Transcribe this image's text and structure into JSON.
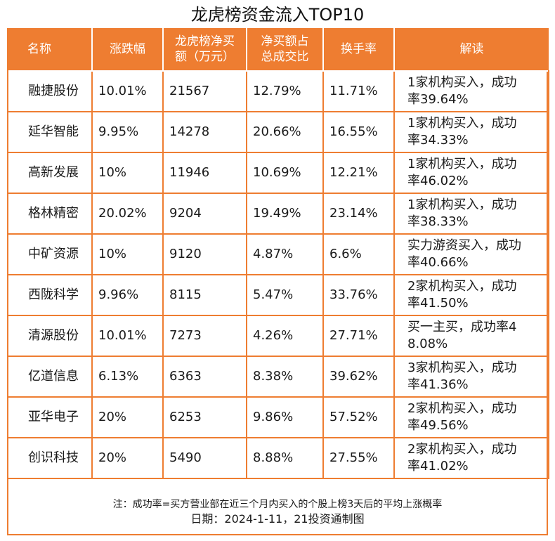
{
  "title": "龙虎榜资金流入TOP10",
  "chart_data": {
    "type": "table",
    "title": "龙虎榜资金流入TOP10",
    "columns": [
      "名称",
      "涨跌幅",
      "龙虎榜净买额（万元）",
      "净买额占总成交比",
      "换手率",
      "解读"
    ],
    "header_lines": [
      [
        "名称"
      ],
      [
        "涨跌幅"
      ],
      [
        "龙虎榜净买",
        "额（万元）"
      ],
      [
        "净买额占",
        "总成交比"
      ],
      [
        "换手率"
      ],
      [
        "解读"
      ]
    ],
    "rows": [
      [
        "融捷股份",
        "10.01%",
        "21567",
        "12.79%",
        "11.71%",
        [
          "1家机构买入，成功",
          "率39.64%"
        ]
      ],
      [
        "延华智能",
        "9.95%",
        "14278",
        "20.66%",
        "16.55%",
        [
          "1家机构买入，成功",
          "率34.33%"
        ]
      ],
      [
        "高新发展",
        "10%",
        "11946",
        "10.69%",
        "12.21%",
        [
          "1家机构买入，成功",
          "率46.02%"
        ]
      ],
      [
        "格林精密",
        "20.02%",
        "9204",
        "19.49%",
        "23.14%",
        [
          "1家机构买入，成功",
          "率38.33%"
        ]
      ],
      [
        "中矿资源",
        "10%",
        "9120",
        "4.87%",
        "6.6%",
        [
          "实力游资买入，成功",
          "率40.66%"
        ]
      ],
      [
        "西陇科学",
        "9.96%",
        "8115",
        "5.47%",
        "33.76%",
        [
          "2家机构买入，成功",
          "率41.50%"
        ]
      ],
      [
        "清源股份",
        "10.01%",
        "7273",
        "4.26%",
        "27.71%",
        [
          "买一主买，成功率4",
          "8.08%"
        ]
      ],
      [
        "亿道信息",
        "6.13%",
        "6363",
        "8.38%",
        "39.62%",
        [
          "3家机构买入，成功",
          "率41.36%"
        ]
      ],
      [
        "亚华电子",
        "20%",
        "6253",
        "9.86%",
        "57.52%",
        [
          "2家机构买入，成功",
          "率49.56%"
        ]
      ],
      [
        "创识科技",
        "20%",
        "5490",
        "8.88%",
        "27.55%",
        [
          "2家机构买入，成功",
          "率41.02%"
        ]
      ]
    ]
  },
  "footer": {
    "note": "注：成功率=买方营业部在近三个月内买入的个股上榜3天后的平均上涨概率",
    "date": "日期：2024-1-11，21投资通制图"
  },
  "colors": {
    "accent": "#ee7d31",
    "header_text": "#ffffff"
  }
}
